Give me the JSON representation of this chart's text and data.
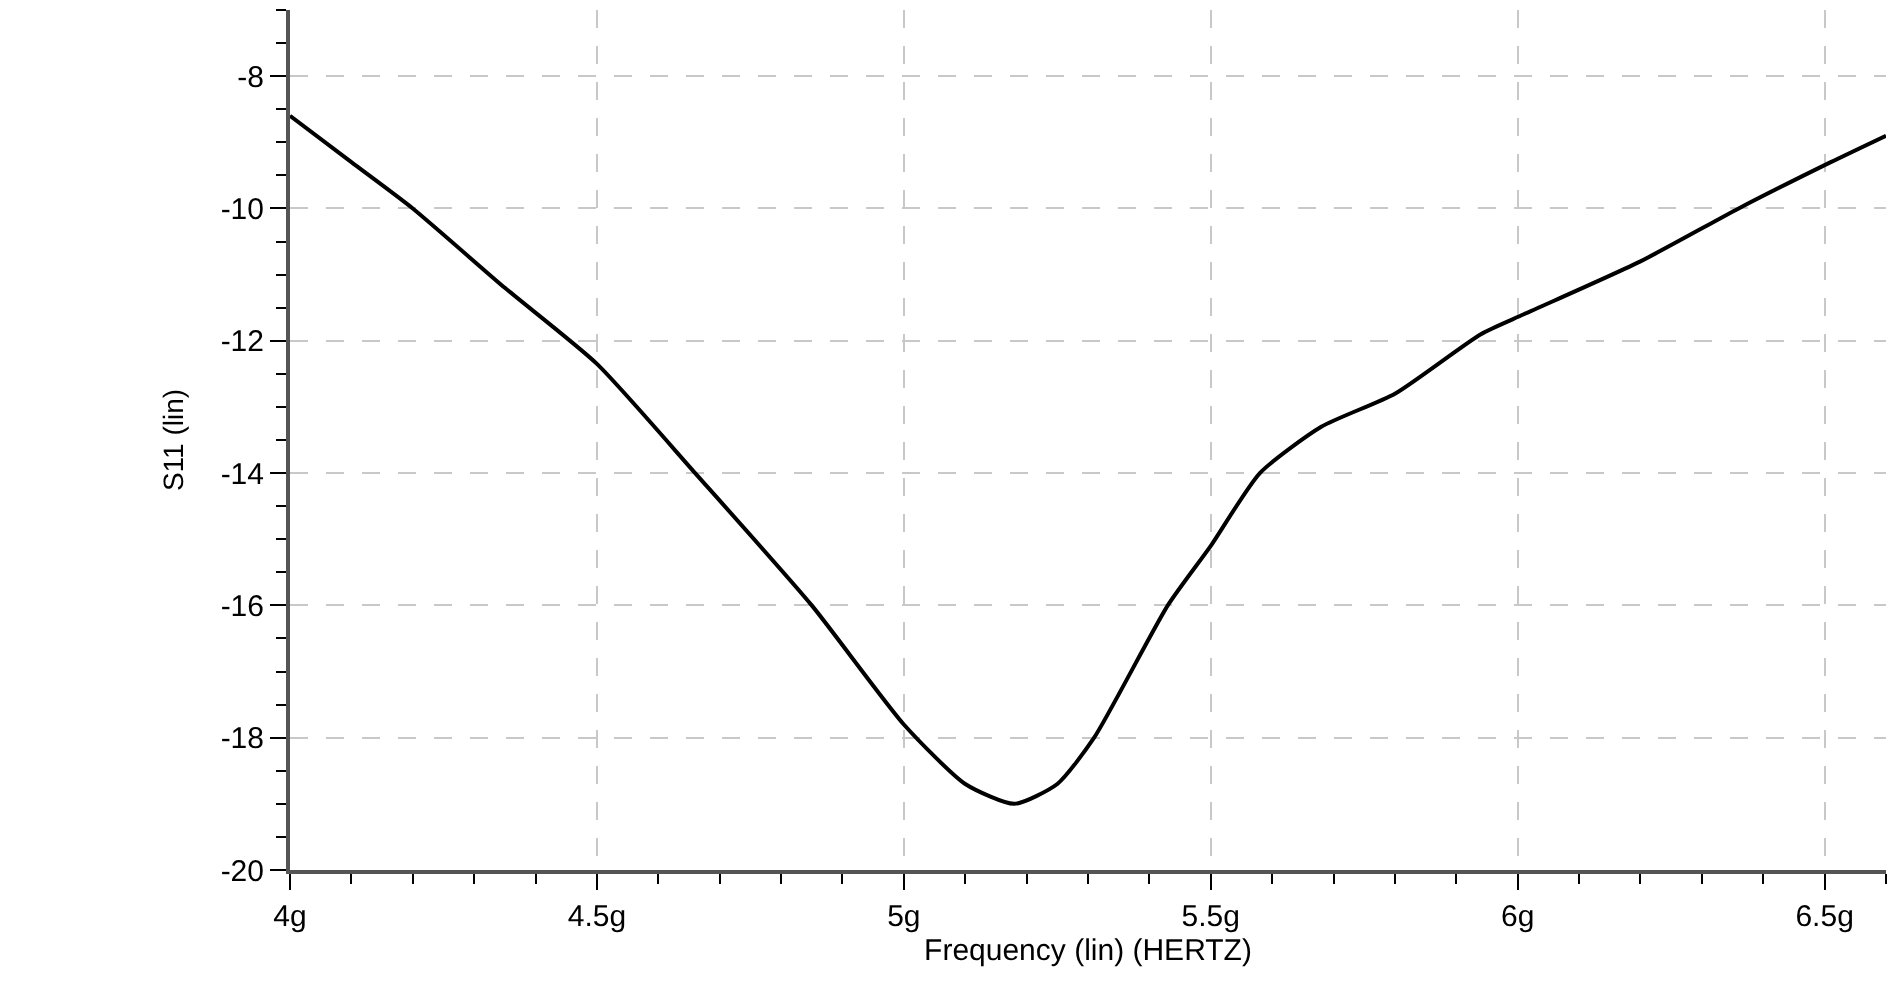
{
  "chart_data": {
    "type": "line",
    "xlabel": "Frequency (lin) (HERTZ)",
    "ylabel": "S11 (lin)",
    "xlim": [
      4,
      6.6
    ],
    "ylim": [
      -20,
      -7
    ],
    "xticks": [
      {
        "value": 4,
        "label": "4g"
      },
      {
        "value": 4.5,
        "label": "4.5g"
      },
      {
        "value": 5,
        "label": "5g"
      },
      {
        "value": 5.5,
        "label": "5.5g"
      },
      {
        "value": 6,
        "label": "6g"
      },
      {
        "value": 6.5,
        "label": "6.5g"
      }
    ],
    "yticks": [
      -20,
      -18,
      -16,
      -14,
      -12,
      -10,
      -8
    ],
    "grid": true,
    "line_style": "solid",
    "series": [
      {
        "color": "#000000",
        "x": [
          4.0,
          4.1,
          4.2,
          4.35,
          4.5,
          4.66,
          4.85,
          5.0,
          5.1,
          5.18,
          5.25,
          5.31,
          5.43,
          5.5,
          5.58,
          5.68,
          5.8,
          5.94,
          6.01,
          6.2,
          6.36,
          6.51,
          6.6
        ],
        "values": [
          -8.6,
          -9.3,
          -10.0,
          -11.2,
          -12.35,
          -14.0,
          -16.0,
          -17.8,
          -18.7,
          -19.0,
          -18.7,
          -18.0,
          -16.0,
          -15.1,
          -14.0,
          -13.3,
          -12.8,
          -11.9,
          -11.6,
          -10.8,
          -10.0,
          -9.3,
          -8.9
        ]
      }
    ]
  }
}
